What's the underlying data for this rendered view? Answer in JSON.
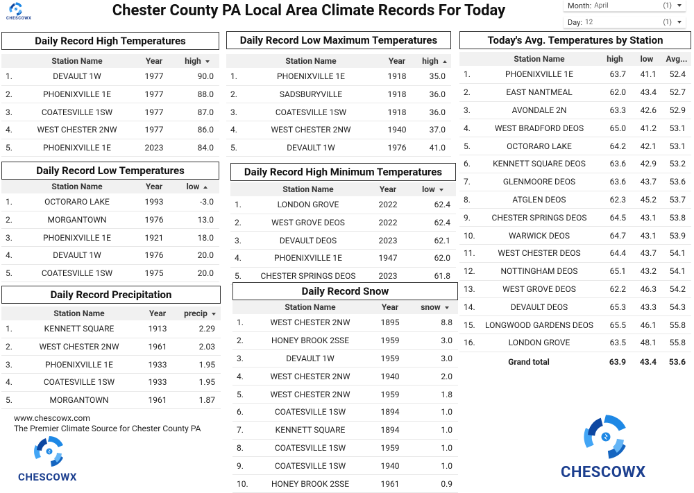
{
  "header": {
    "title": "Chester County PA Local Area Climate Records For Today",
    "logo_text": "CHESCOWX"
  },
  "filters": [
    {
      "label": "Month:",
      "value": "April",
      "count": "(1)"
    },
    {
      "label": "Day:",
      "value": "12",
      "count": "(1)"
    }
  ],
  "tables": [
    {
      "title": "Daily Record High Temperatures",
      "columns": [
        "Station Name",
        "Year",
        "high"
      ],
      "sort_column": 2,
      "sort_direction": "descending",
      "rows": [
        [
          "1.",
          "DEVAULT 1W",
          "1977",
          "90.0"
        ],
        [
          "2.",
          "PHOENIXVILLE 1E",
          "1977",
          "88.0"
        ],
        [
          "3.",
          "COATESVILLE 1SW",
          "1977",
          "87.0"
        ],
        [
          "4.",
          "WEST CHESTER 2NW",
          "1977",
          "86.0"
        ],
        [
          "5.",
          "PHOENIXVILLE 1E",
          "2023",
          "84.0"
        ]
      ]
    },
    {
      "title": "Daily Record Low Maximum Temperatures",
      "columns": [
        "Station Name",
        "Year",
        "high"
      ],
      "sort_column": 2,
      "sort_direction": "ascending",
      "rows": [
        [
          "1.",
          "PHOENIXVILLE 1E",
          "1918",
          "35.0"
        ],
        [
          "2.",
          "SADSBURYVILLE",
          "1918",
          "36.0"
        ],
        [
          "3.",
          "COATESVILLE 1SW",
          "1918",
          "36.0"
        ],
        [
          "4.",
          "WEST CHESTER 2NW",
          "1940",
          "37.0"
        ],
        [
          "5.",
          "DEVAULT 1W",
          "1976",
          "41.0"
        ]
      ]
    },
    {
      "title": "Today's Avg. Temperatures by Station",
      "columns": [
        "Station Name",
        "high",
        "low",
        "Avg..."
      ],
      "rows": [
        [
          "1.",
          "PHOENIXVILLE 1E",
          "63.7",
          "41.1",
          "52.4"
        ],
        [
          "2.",
          "EAST NANTMEAL",
          "62.0",
          "43.4",
          "52.7"
        ],
        [
          "3.",
          "AVONDALE 2N",
          "63.3",
          "42.6",
          "52.9"
        ],
        [
          "4.",
          "WEST BRADFORD DEOS",
          "65.0",
          "41.2",
          "53.1"
        ],
        [
          "5.",
          "OCTORARO LAKE",
          "64.2",
          "42.1",
          "53.1"
        ],
        [
          "6.",
          "KENNETT SQUARE DEOS",
          "63.6",
          "42.9",
          "53.2"
        ],
        [
          "7.",
          "GLENMOORE DEOS",
          "63.6",
          "43.7",
          "53.6"
        ],
        [
          "8.",
          "ATGLEN DEOS",
          "62.3",
          "45.2",
          "53.7"
        ],
        [
          "9.",
          "CHESTER SPRINGS DEOS",
          "64.5",
          "43.1",
          "53.8"
        ],
        [
          "10.",
          "WARWICK DEOS",
          "64.7",
          "43.1",
          "53.9"
        ],
        [
          "11.",
          "WEST CHESTER DEOS",
          "64.4",
          "43.7",
          "54.1"
        ],
        [
          "12.",
          "NOTTINGHAM DEOS",
          "65.1",
          "43.2",
          "54.1"
        ],
        [
          "13.",
          "WEST GROVE DEOS",
          "62.2",
          "46.3",
          "54.2"
        ],
        [
          "14.",
          "DEVAULT DEOS",
          "65.3",
          "43.3",
          "54.3"
        ],
        [
          "15.",
          "LONGWOOD GARDENS DEOS",
          "65.5",
          "46.1",
          "55.8"
        ],
        [
          "16.",
          "LONDON GROVE",
          "63.5",
          "48.1",
          "55.8"
        ]
      ],
      "total": [
        "Grand total",
        "63.9",
        "43.4",
        "53.6"
      ]
    },
    {
      "title": "Daily Record Low Temperatures",
      "columns": [
        "Station Name",
        "Year",
        "low"
      ],
      "sort_column": 2,
      "sort_direction": "ascending",
      "rows": [
        [
          "1.",
          "OCTORARO LAKE",
          "1993",
          "-3.0"
        ],
        [
          "2.",
          "MORGANTOWN",
          "1976",
          "13.0"
        ],
        [
          "3.",
          "PHOENIXVILLE 1E",
          "1921",
          "18.0"
        ],
        [
          "4.",
          "DEVAULT 1W",
          "1976",
          "20.0"
        ],
        [
          "5.",
          "COATESVILLE 1SW",
          "1975",
          "20.0"
        ]
      ]
    },
    {
      "title": "Daily Record High Minimum Temperatures",
      "columns": [
        "Station Name",
        "Year",
        "low"
      ],
      "sort_column": 2,
      "sort_direction": "descending",
      "rows": [
        [
          "1.",
          "LONDON GROVE",
          "2022",
          "62.4"
        ],
        [
          "2.",
          "WEST GROVE DEOS",
          "2022",
          "62.4"
        ],
        [
          "3.",
          "DEVAULT DEOS",
          "2023",
          "62.1"
        ],
        [
          "4.",
          "PHOENIXVILLE 1E",
          "1947",
          "62.0"
        ],
        [
          "5.",
          "CHESTER SPRINGS DEOS",
          "2023",
          "61.8"
        ]
      ]
    },
    {
      "title": "Daily Record Precipitation",
      "columns": [
        "Station Name",
        "Year",
        "precip"
      ],
      "sort_column": 2,
      "sort_direction": "descending",
      "rows": [
        [
          "1.",
          "KENNETT SQUARE",
          "1913",
          "2.29"
        ],
        [
          "2.",
          "WEST CHESTER 2NW",
          "1961",
          "2.03"
        ],
        [
          "3.",
          "PHOENIXVILLE 1E",
          "1933",
          "1.95"
        ],
        [
          "4.",
          "COATESVILLE 1SW",
          "1933",
          "1.95"
        ],
        [
          "5.",
          "MORGANTOWN",
          "1961",
          "1.87"
        ]
      ]
    },
    {
      "title": "Daily Record Snow",
      "columns": [
        "Station Name",
        "Year",
        "snow"
      ],
      "sort_column": 2,
      "sort_direction": "descending",
      "rows": [
        [
          "1.",
          "WEST CHESTER 2NW",
          "1895",
          "8.8"
        ],
        [
          "2.",
          "HONEY BROOK 2SSE",
          "1959",
          "3.0"
        ],
        [
          "3.",
          "DEVAULT 1W",
          "1959",
          "3.0"
        ],
        [
          "4.",
          "WEST CHESTER 2NW",
          "1940",
          "2.0"
        ],
        [
          "5.",
          "WEST CHESTER 2NW",
          "1959",
          "1.8"
        ],
        [
          "6.",
          "COATESVILLE 1SW",
          "1894",
          "1.0"
        ],
        [
          "7.",
          "KENNETT SQUARE",
          "1894",
          "1.0"
        ],
        [
          "8.",
          "COATESVILLE 1SW",
          "1959",
          "1.0"
        ],
        [
          "9.",
          "COATESVILLE 1SW",
          "1940",
          "1.0"
        ],
        [
          "10.",
          "HONEY BROOK 2SSE",
          "1961",
          "0.9"
        ]
      ]
    }
  ],
  "footer": {
    "website": "www.chescowx.com",
    "tagline": "The Premier Climate Source for Chester County PA",
    "logo_text": "CHESCOWX",
    "brand_logo_text": "CHESCOWX"
  }
}
